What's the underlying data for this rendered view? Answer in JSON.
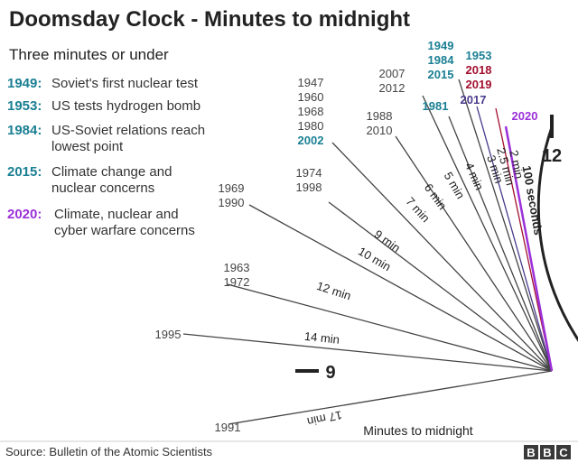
{
  "header": {
    "title": "Doomsday Clock - Minutes to midnight",
    "subtitle": "Three minutes or under"
  },
  "events": [
    {
      "year": "1949:",
      "text": [
        "Soviet's first nuclear test"
      ],
      "color": "#1a7f93"
    },
    {
      "year": "1953:",
      "text": [
        "US tests hydrogen bomb"
      ],
      "color": "#1a7f93"
    },
    {
      "year": "1984:",
      "text": [
        "US-Soviet relations reach",
        "lowest point"
      ],
      "color": "#1a7f93"
    },
    {
      "year": "2015:",
      "text": [
        "Climate change and",
        "nuclear concerns"
      ],
      "color": "#1a7f93"
    },
    {
      "year": "2020:",
      "text": [
        "Climate, nuclear and",
        "cyber warfare concerns"
      ],
      "color": "#9b30d9"
    }
  ],
  "footer": {
    "source": "Source: Bulletin of the Atomic Scientists",
    "logo_letters": [
      "B",
      "B",
      "C"
    ]
  },
  "colors": {
    "line": "#444444",
    "highlight_teal": "#1a7f93",
    "highlight_red": "#a30f2f",
    "highlight_indigo": "#4a3a8c",
    "highlight_purple": "#9b30d9",
    "text_grey": "#444444"
  },
  "chart_data": {
    "type": "radial",
    "axis_title": "Minutes to midnight",
    "clock_labels": [
      "12",
      "9"
    ],
    "settings": [
      {
        "minutes": 17,
        "label": "17 min",
        "years": [
          {
            "y": "1991",
            "c": "grey"
          }
        ]
      },
      {
        "minutes": 14,
        "label": "14 min",
        "years": [
          {
            "y": "1995",
            "c": "grey"
          }
        ]
      },
      {
        "minutes": 12,
        "label": "12 min",
        "years": [
          {
            "y": "1963",
            "c": "grey"
          },
          {
            "y": "1972",
            "c": "grey"
          }
        ]
      },
      {
        "minutes": 10,
        "label": "10 min",
        "years": [
          {
            "y": "1969",
            "c": "grey"
          },
          {
            "y": "1990",
            "c": "grey"
          }
        ]
      },
      {
        "minutes": 9,
        "label": "9 min",
        "years": [
          {
            "y": "1974",
            "c": "grey"
          },
          {
            "y": "1998",
            "c": "grey"
          }
        ]
      },
      {
        "minutes": 7,
        "label": "7 min",
        "years": [
          {
            "y": "1947",
            "c": "grey"
          },
          {
            "y": "1960",
            "c": "grey"
          },
          {
            "y": "1968",
            "c": "grey"
          },
          {
            "y": "1980",
            "c": "grey"
          },
          {
            "y": "2002",
            "c": "teal"
          }
        ]
      },
      {
        "minutes": 6,
        "label": "6 min",
        "years": [
          {
            "y": "1988",
            "c": "grey"
          },
          {
            "y": "2010",
            "c": "grey"
          }
        ]
      },
      {
        "minutes": 5,
        "label": "5 min",
        "years": [
          {
            "y": "2007",
            "c": "grey"
          },
          {
            "y": "2012",
            "c": "grey"
          }
        ]
      },
      {
        "minutes": 4,
        "label": "4 min",
        "years": [
          {
            "y": "1981",
            "c": "teal"
          }
        ]
      },
      {
        "minutes": 3,
        "label": "3 min",
        "years": [
          {
            "y": "1949",
            "c": "teal"
          },
          {
            "y": "1984",
            "c": "teal"
          },
          {
            "y": "2015",
            "c": "teal"
          }
        ]
      },
      {
        "minutes": 2.5,
        "label": "2.5 min",
        "years": [
          {
            "y": "2017",
            "c": "indigo"
          }
        ]
      },
      {
        "minutes": 2,
        "label": "2 min",
        "years": [
          {
            "y": "1953",
            "c": "teal"
          },
          {
            "y": "2018",
            "c": "red"
          },
          {
            "y": "2019",
            "c": "red"
          }
        ]
      },
      {
        "minutes": 1.6667,
        "label": "100 seconds",
        "years": [
          {
            "y": "2020",
            "c": "purple"
          }
        ]
      }
    ]
  }
}
